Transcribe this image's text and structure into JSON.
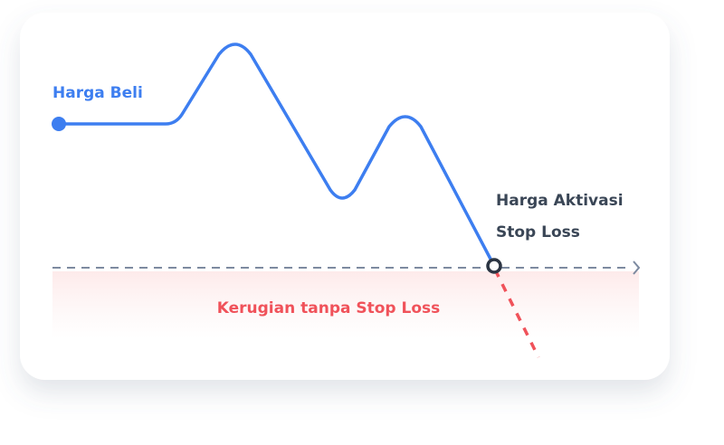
{
  "labels": {
    "buy_price": "Harga Beli",
    "activation": [
      "Harga Aktivasi",
      "Stop Loss"
    ],
    "loss_zone": "Kerugian tanpa Stop Loss"
  }
}
